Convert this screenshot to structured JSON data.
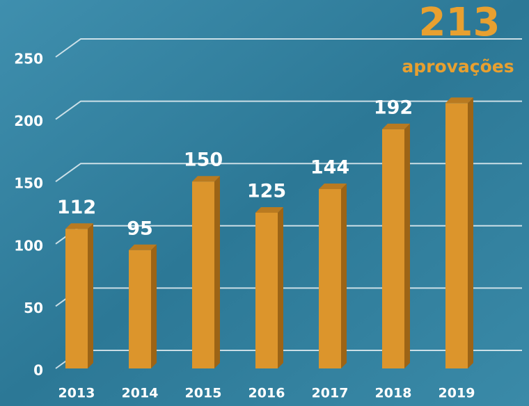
{
  "chart_data": {
    "type": "bar",
    "categories": [
      "2013",
      "2014",
      "2015",
      "2016",
      "2017",
      "2018",
      "2019"
    ],
    "values": [
      112,
      95,
      150,
      125,
      144,
      192,
      213
    ],
    "color": "#dc952c",
    "annotation": "aprovações",
    "ylim": [
      0,
      250
    ],
    "yticks": [
      0,
      50,
      100,
      150,
      200,
      250
    ],
    "grid": true
  }
}
